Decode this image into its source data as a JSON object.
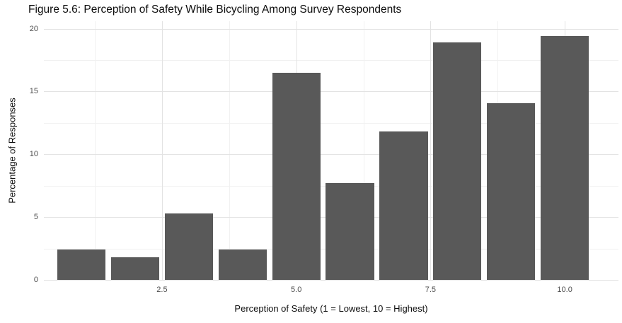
{
  "chart_data": {
    "type": "bar",
    "title": "Figure 5.6: Perception of Safety While Bicycling Among Survey Respondents",
    "xlabel": "Perception of Safety (1 = Lowest, 10 = Highest)",
    "ylabel": "Percentage of Responses",
    "categories": [
      1,
      2,
      3,
      4,
      5,
      6,
      7,
      8,
      9,
      10
    ],
    "values": [
      2.4,
      1.8,
      5.3,
      2.4,
      16.5,
      7.7,
      11.8,
      18.9,
      14.1,
      19.4
    ],
    "bar_width": 0.9,
    "xlim": [
      0.3,
      11.0
    ],
    "ylim": [
      0,
      20.6
    ],
    "x_major_ticks": [
      2.5,
      5.0,
      7.5,
      10.0
    ],
    "x_tick_labels": [
      "2.5",
      "5.0",
      "7.5",
      "10.0"
    ],
    "x_minor_ticks": [
      1.25,
      3.75,
      6.25,
      8.75
    ],
    "y_major_ticks": [
      0,
      5,
      10,
      15,
      20
    ],
    "y_tick_labels": [
      "0",
      "5",
      "10",
      "15",
      "20"
    ],
    "y_minor_ticks": [
      2.5,
      7.5,
      12.5,
      17.5
    ],
    "grid": true,
    "legend": false,
    "theme": "minimal-white",
    "colors": {
      "bar": "#595959",
      "grid_major": "#e3e3e3",
      "grid_minor": "#f1f1f1",
      "tick_text": "#4d4d4d",
      "title_text": "#0d0d0d",
      "background": "#ffffff"
    }
  }
}
